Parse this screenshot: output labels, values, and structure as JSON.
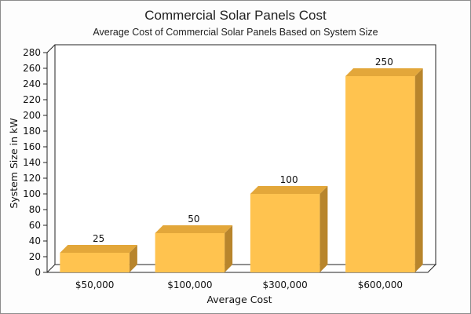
{
  "chart_data": {
    "type": "bar",
    "title": "Commercial Solar Panels Cost",
    "subtitle": "Average Cost of Commercial Solar Panels Based on System Size",
    "xlabel": "Average Cost",
    "ylabel": "System Size in kW",
    "categories": [
      "$50,000",
      "$100,000",
      "$300,000",
      "$600,000"
    ],
    "values": [
      25,
      50,
      100,
      250
    ],
    "data_labels": [
      "25",
      "50",
      "100",
      "250"
    ],
    "ylim": [
      0,
      280
    ],
    "yticks": [
      "0",
      "20",
      "40",
      "60",
      "80",
      "100",
      "120",
      "140",
      "160",
      "180",
      "200",
      "220",
      "240",
      "260",
      "280"
    ],
    "grid": false,
    "legend": "none",
    "colors": {
      "bar_front": "#ffc34f",
      "bar_top": "#e3a73a",
      "bar_side": "#b8852c",
      "wall": "#ffffff",
      "floor": "#ffffff",
      "axis": "#222222"
    }
  }
}
